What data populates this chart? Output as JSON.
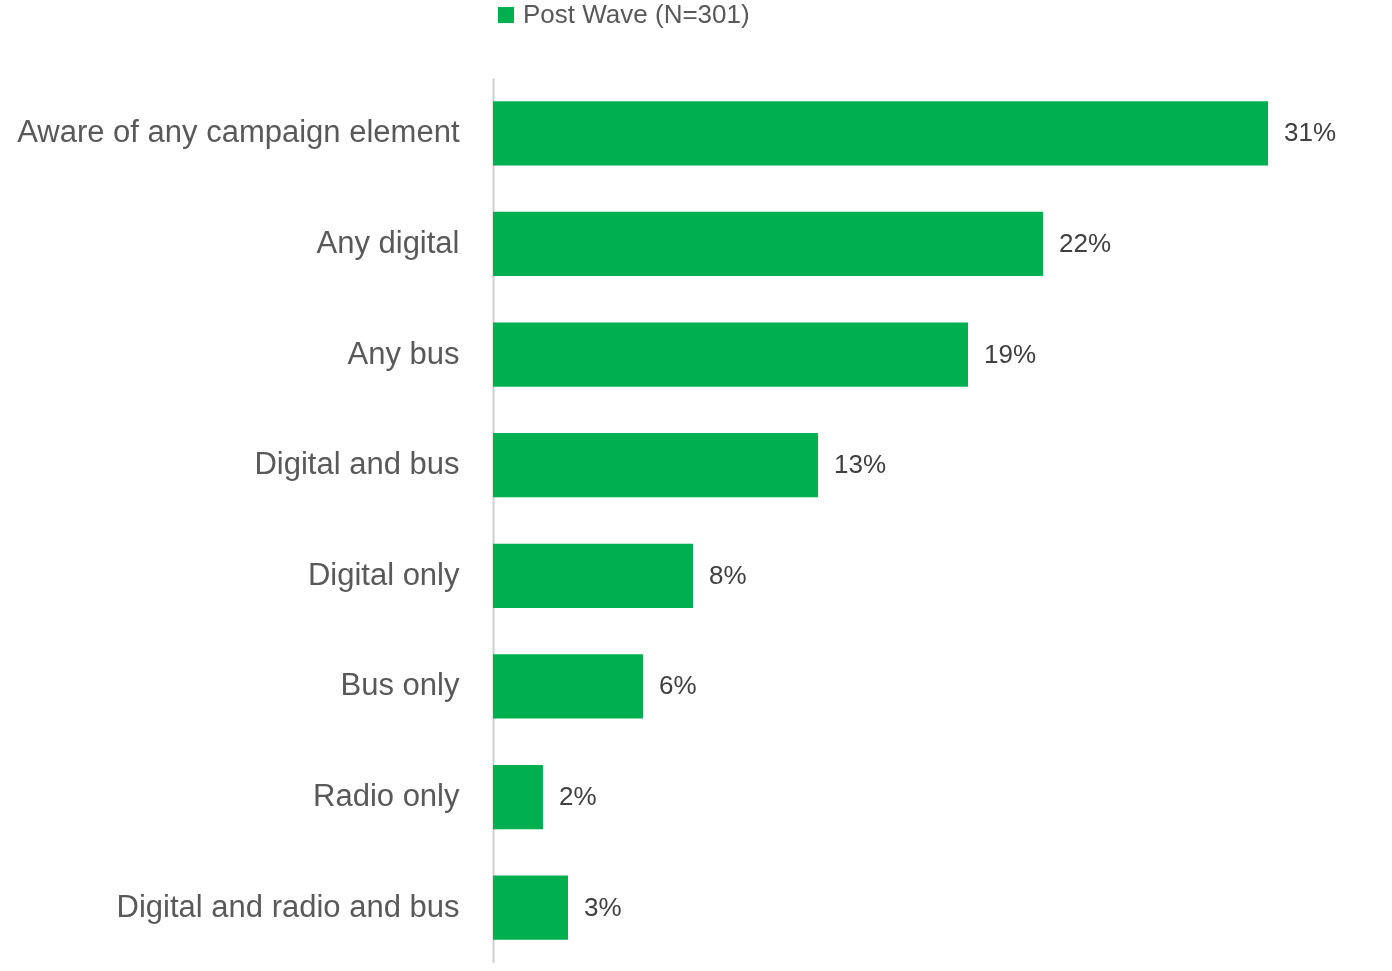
{
  "chart_data": {
    "type": "bar",
    "orientation": "horizontal",
    "categories": [
      "Aware of any campaign element",
      "Any digital",
      "Any bus",
      "Digital and bus",
      "Digital only",
      "Bus only",
      "Radio only",
      "Digital and radio and bus"
    ],
    "series": [
      {
        "name": "Post Wave (N=301)",
        "color": "#00b050",
        "values": [
          31,
          22,
          19,
          13,
          8,
          6,
          2,
          3
        ],
        "value_labels": [
          "31%",
          "22%",
          "19%",
          "13%",
          "8%",
          "6%",
          "2%",
          "3%"
        ]
      }
    ],
    "legend": "top",
    "grid": false
  }
}
